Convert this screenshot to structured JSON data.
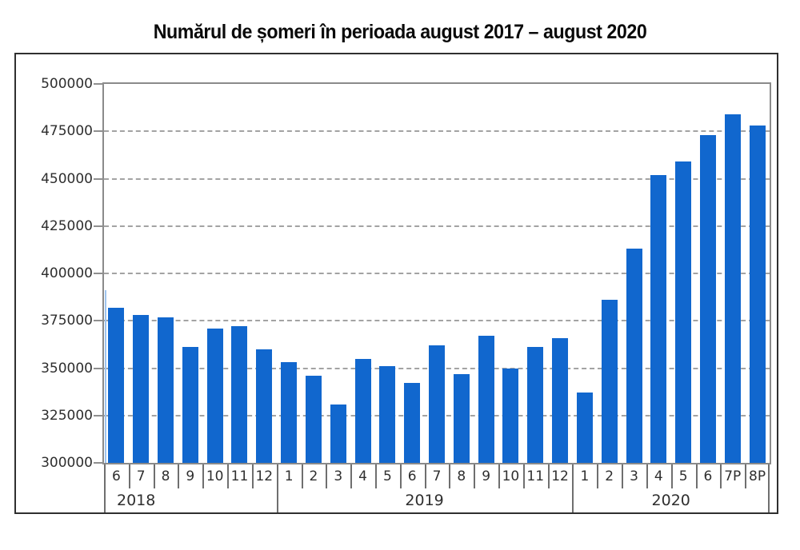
{
  "chart_data": {
    "type": "bar",
    "title": "Numărul de șomeri în perioada august 2017 – august 2020",
    "categories": [
      "6",
      "7",
      "8",
      "9",
      "10",
      "11",
      "12",
      "1",
      "2",
      "3",
      "4",
      "5",
      "6",
      "7",
      "8",
      "9",
      "10",
      "11",
      "12",
      "1",
      "2",
      "3",
      "4",
      "5",
      "6",
      "7P",
      "8P"
    ],
    "year_groups": [
      {
        "label": "2018",
        "months": 7
      },
      {
        "label": "2019",
        "months": 12
      },
      {
        "label": "2020",
        "months": 8
      }
    ],
    "values": [
      382000,
      378000,
      377000,
      361000,
      371000,
      372000,
      360000,
      353000,
      346000,
      331000,
      355000,
      351000,
      342000,
      362000,
      347000,
      367000,
      350000,
      361000,
      366000,
      337000,
      386000,
      413000,
      452000,
      459000,
      473000,
      484000,
      478000
    ],
    "ylim": [
      300000,
      500000
    ],
    "ytick_step": 25000,
    "ytick_labels": [
      "500000",
      "475000",
      "450000",
      "425000",
      "400000",
      "375000",
      "350000",
      "325000",
      "300000"
    ],
    "xlabel": "",
    "ylabel": "",
    "grid": "horizontal-dashed",
    "legend": "none",
    "edge_artifact": {
      "note": "thin clipped partial bar at left plot edge",
      "value": 391000,
      "color": "#9FC4EE"
    },
    "colors": {
      "bar": "#1167CE",
      "grid": "#A3A3A3",
      "plot_border": "#8A8A8A",
      "frame_border": "#2F2F2F",
      "text": "#2E2E2E"
    }
  }
}
